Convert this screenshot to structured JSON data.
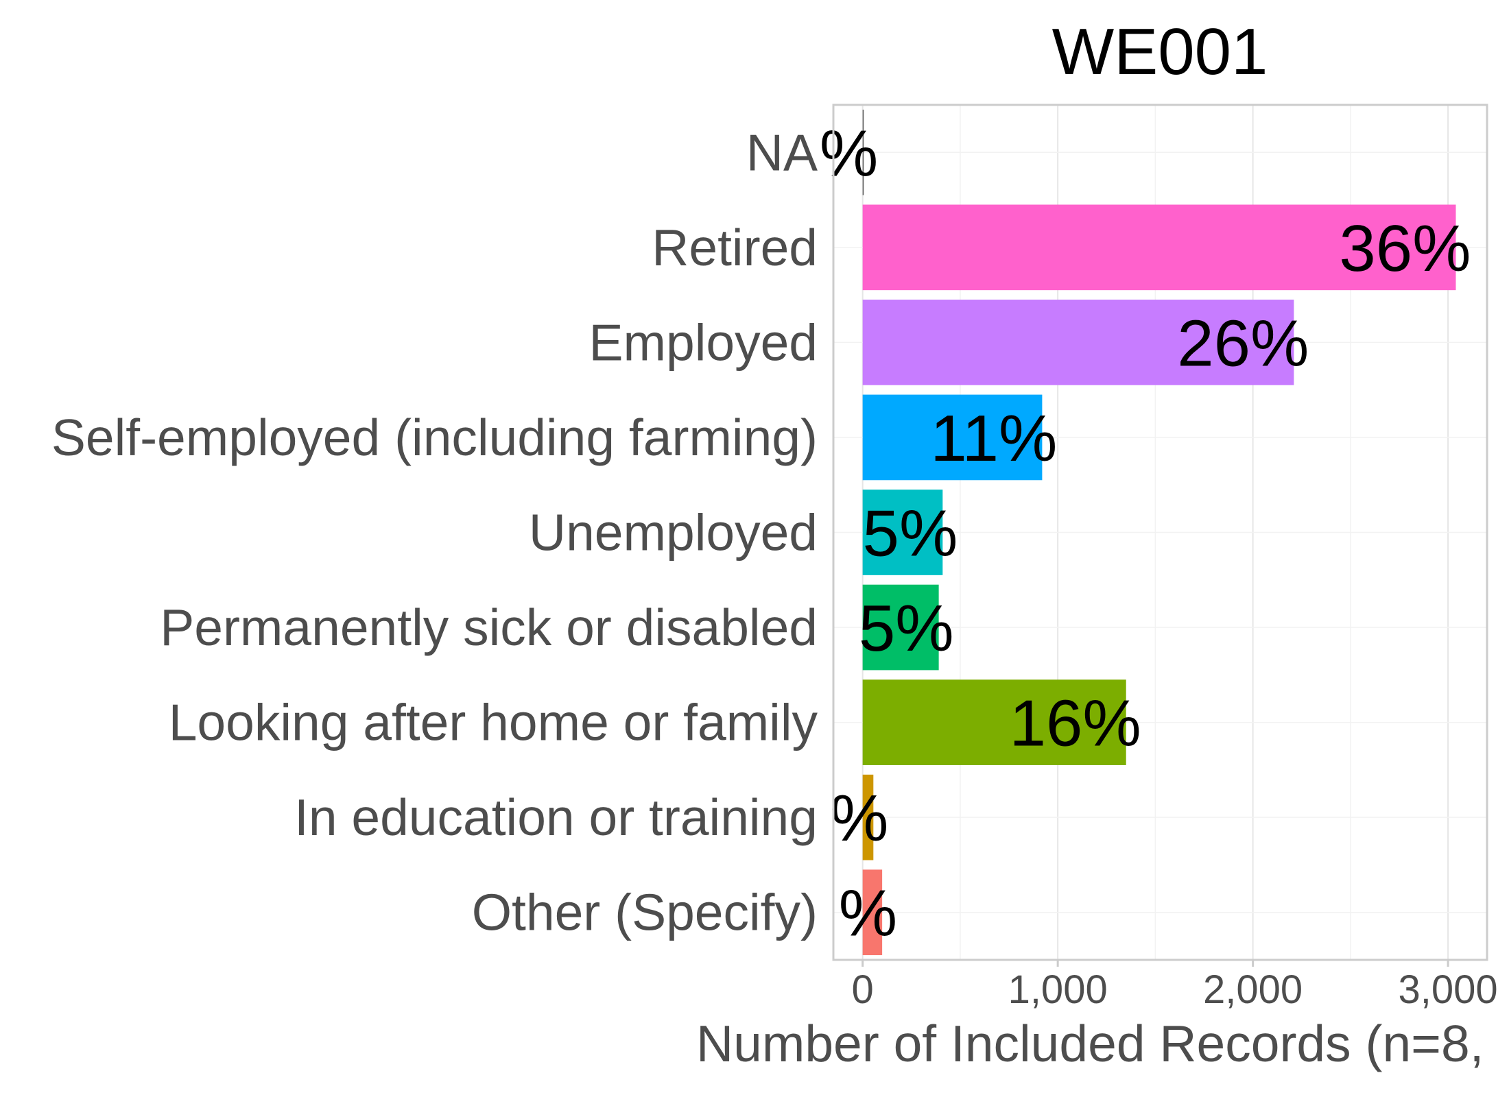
{
  "chart_data": {
    "type": "bar",
    "orientation": "horizontal",
    "title": "WE001",
    "xlabel": "Number of Included Records (n=8,",
    "ylabel": "",
    "xlim": [
      -150,
      3200
    ],
    "xticks": [
      0,
      1000,
      2000,
      3000
    ],
    "xtick_labels": [
      "0",
      "1,000",
      "2,000",
      "3,000"
    ],
    "grid": true,
    "categories": [
      "NA",
      "Retired",
      "Employed",
      "Self-employed (including farming)",
      "Unemployed",
      "Permanently sick or disabled",
      "Looking after home or family",
      "In education or training",
      "Other (Specify)"
    ],
    "values": [
      2,
      3040,
      2210,
      920,
      410,
      390,
      1350,
      55,
      100
    ],
    "labels": [
      "%",
      "36%",
      "26%",
      "11%",
      "5%",
      "5%",
      "16%",
      "%",
      "%"
    ],
    "colors": [
      "#595959",
      "#FF61CC",
      "#C77CFF",
      "#00A9FF",
      "#00BFC4",
      "#00BE67",
      "#7CAE00",
      "#CD9600",
      "#F8766D"
    ]
  }
}
